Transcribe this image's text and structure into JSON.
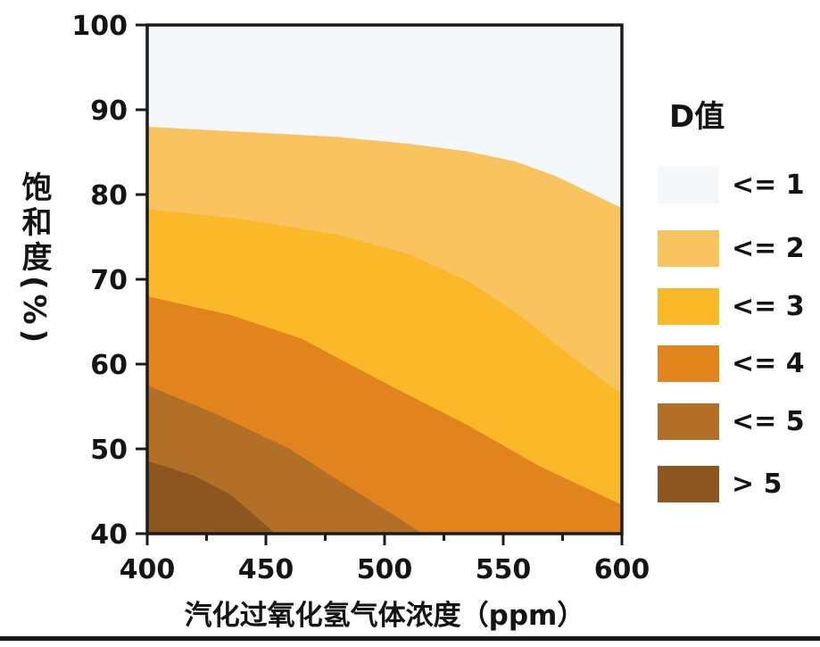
{
  "figure": {
    "background": "#ffffff",
    "bottom_rule_color": "#171717",
    "axis_color": "#1b1b1b"
  },
  "chart_data": {
    "type": "area",
    "variant": "filled-contour-bands",
    "title": "",
    "xlabel": "汽化过氧化氢气体浓度（ppm）",
    "ylabel": "饱和度(%)",
    "xlim": [
      400,
      600
    ],
    "ylim": [
      40,
      100
    ],
    "xticks": [
      400,
      450,
      500,
      550,
      600
    ],
    "xticks_minor": [
      425,
      475,
      525,
      575
    ],
    "yticks": [
      100,
      90,
      80,
      70,
      60,
      50,
      40
    ],
    "grid": false,
    "legend_title": "D值",
    "legend_position": "right",
    "bands": [
      {
        "label": "<= 1",
        "color": "#F4F8FB",
        "upper_boundary": null
      },
      {
        "label": "<= 2",
        "color": "#F9C45F",
        "upper_boundary": [
          [
            400,
            88.0
          ],
          [
            440,
            87.4
          ],
          [
            480,
            86.8
          ],
          [
            510,
            86.0
          ],
          [
            535,
            85.1
          ],
          [
            555,
            83.9
          ],
          [
            572,
            82.2
          ],
          [
            586,
            80.3
          ],
          [
            600,
            78.4
          ]
        ]
      },
      {
        "label": "<= 3",
        "color": "#FBB828",
        "upper_boundary": [
          [
            400,
            78.3
          ],
          [
            440,
            77.1
          ],
          [
            480,
            75.3
          ],
          [
            510,
            73.0
          ],
          [
            535,
            69.8
          ],
          [
            555,
            66.2
          ],
          [
            575,
            61.7
          ],
          [
            600,
            56.4
          ]
        ]
      },
      {
        "label": "<= 4",
        "color": "#E2841E",
        "upper_boundary": [
          [
            400,
            68.0
          ],
          [
            435,
            65.8
          ],
          [
            465,
            63.0
          ],
          [
            500,
            57.8
          ],
          [
            535,
            52.8
          ],
          [
            565,
            48.0
          ],
          [
            600,
            43.4
          ]
        ]
      },
      {
        "label": "<= 5",
        "color": "#B26F27",
        "upper_boundary": [
          [
            400,
            57.5
          ],
          [
            430,
            54.0
          ],
          [
            460,
            50.0
          ],
          [
            485,
            45.5
          ],
          [
            505,
            42.0
          ],
          [
            516,
            40.0
          ]
        ]
      },
      {
        "label": "> 5",
        "color": "#8C5620",
        "upper_boundary": [
          [
            400,
            48.6
          ],
          [
            420,
            46.8
          ],
          [
            435,
            44.6
          ],
          [
            448,
            41.5
          ],
          [
            454,
            40.0
          ]
        ]
      }
    ]
  }
}
